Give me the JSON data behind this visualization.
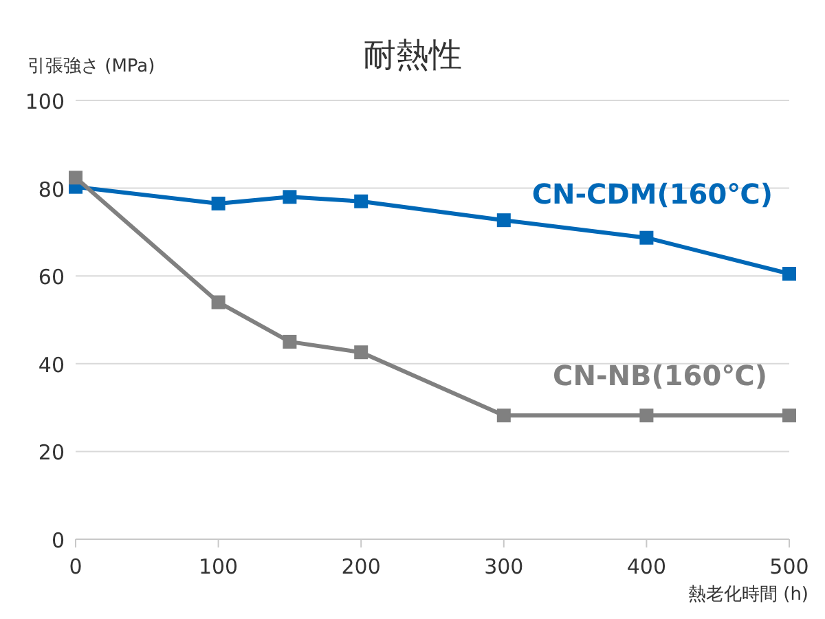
{
  "chart_data": {
    "type": "line",
    "title": "耐熱性",
    "ylabel": "引張強さ (MPa)",
    "xlabel": "熱老化時間 (h)",
    "x": [
      0,
      100,
      150,
      200,
      300,
      400,
      500
    ],
    "xlim": [
      0,
      500
    ],
    "xticks": [
      0,
      100,
      200,
      300,
      400,
      500
    ],
    "ylim": [
      0,
      100
    ],
    "yticks": [
      0,
      20,
      40,
      60,
      80,
      100
    ],
    "grid": "y",
    "marker": "square",
    "line_style": "solid",
    "series": [
      {
        "name": "CN-CDM(160℃)",
        "color": "#0068b7",
        "values": [
          80.3,
          76.5,
          78,
          77,
          72.7,
          68.7,
          60.5
        ]
      },
      {
        "name": "CN-NB(160℃)",
        "color": "#808080",
        "values": [
          82.4,
          54,
          45,
          42.6,
          28.2,
          28.2,
          28.2
        ]
      }
    ]
  }
}
